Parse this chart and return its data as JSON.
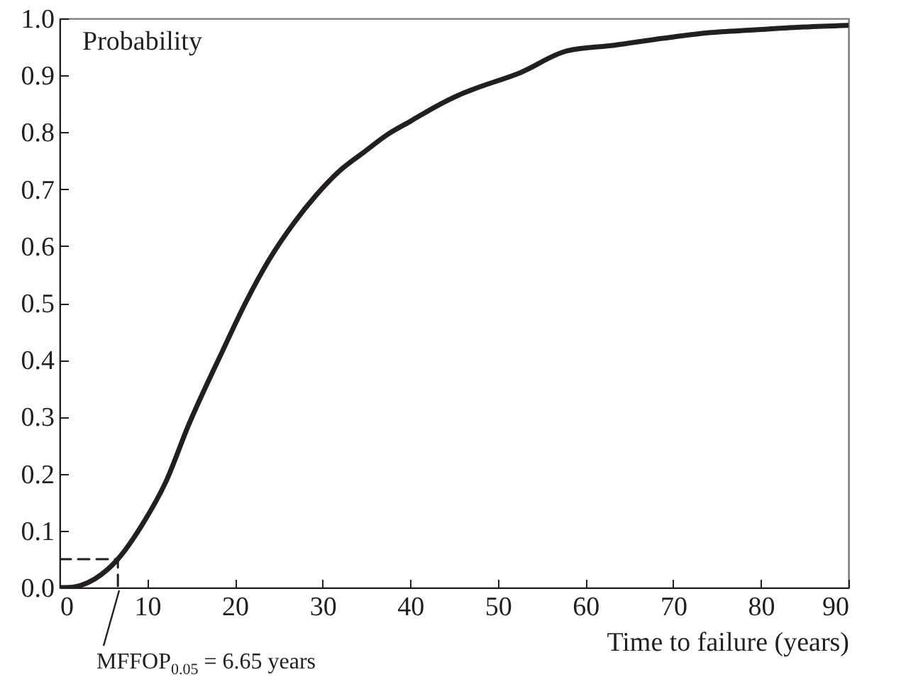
{
  "chart_data": {
    "type": "line",
    "ylabel": "Probability",
    "xlabel": "Time to failure (years)",
    "annotations": [
      "MFFOP$_{0.05}$ = 6.65 years"
    ],
    "xlim": [
      0,
      90
    ],
    "xticks": [
      0,
      10,
      20,
      30,
      40,
      50,
      60,
      70,
      80,
      90
    ],
    "ylim": [
      0,
      1
    ],
    "yticks": [
      {
        "value": 0,
        "label": "0.0"
      },
      0.1,
      0.2,
      0.3,
      0.4,
      0.5,
      0.6,
      0.7,
      0.8,
      0.9,
      {
        "value": 1,
        "label": "1.0"
      }
    ],
    "grid": false,
    "series": [
      {
        "color": "#231f20",
        "line_style": "solid",
        "x": [
          0,
          0.8,
          4,
          6.65,
          9.4,
          12.1,
          14.7,
          18.6,
          21.2,
          23.9,
          26.7,
          29.3,
          32,
          34.8,
          37.4,
          40.1,
          42.9,
          45.5,
          47.1,
          52.6,
          57.9,
          63.3,
          68.8,
          74.1,
          79.4,
          84.9,
          90
        ],
        "values": [
          0,
          0,
          0.015,
          0.05,
          0.11,
          0.185,
          0.285,
          0.416,
          0.5,
          0.576,
          0.64,
          0.69,
          0.733,
          0.766,
          0.796,
          0.82,
          0.845,
          0.865,
          0.875,
          0.905,
          0.943,
          0.953,
          0.965,
          0.975,
          0.98,
          0.985,
          0.988
        ]
      },
      {
        "color": "#231f20",
        "line_style": "dashed",
        "x": [
          0,
          6.65,
          6.65
        ],
        "values": [
          0.05,
          0.05,
          0
        ]
      }
    ]
  }
}
